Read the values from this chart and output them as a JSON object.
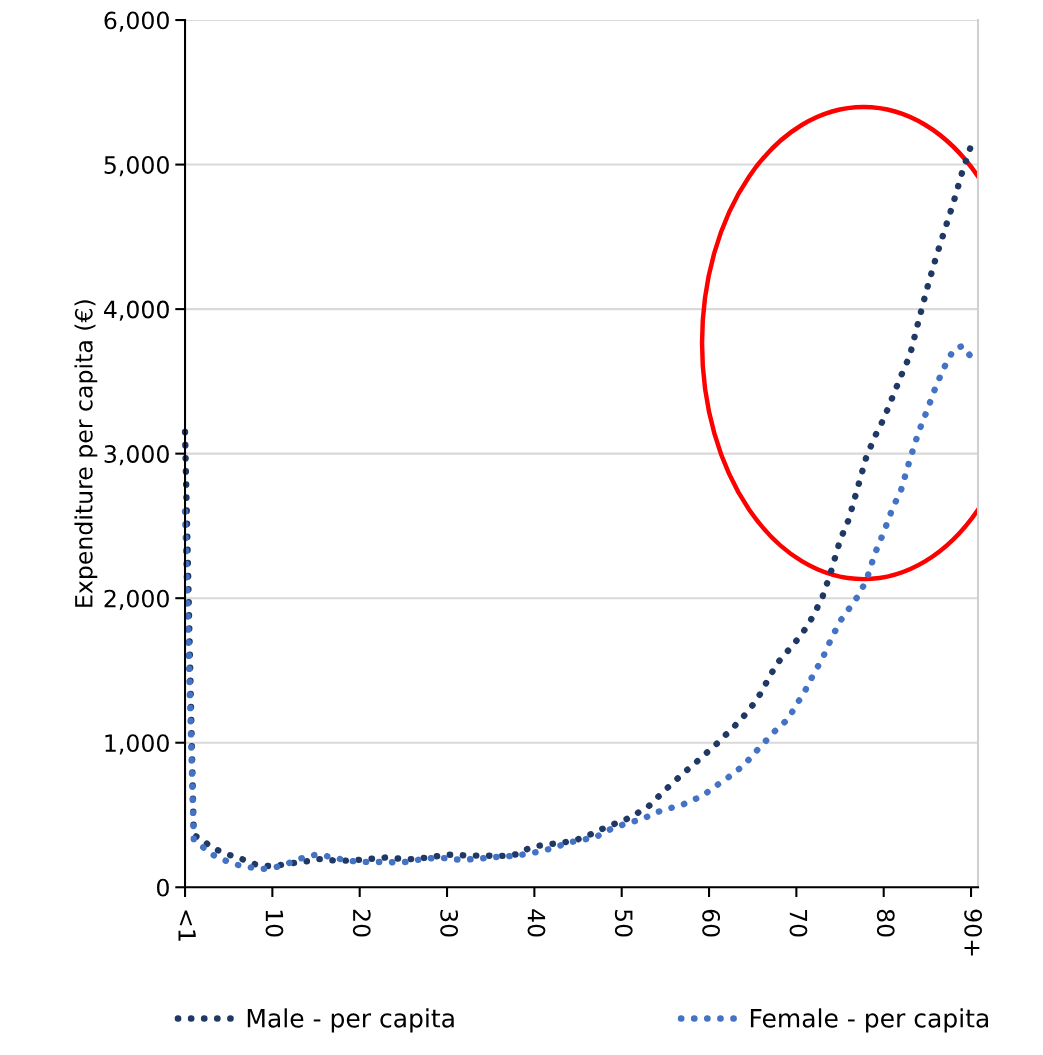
{
  "chart_data": {
    "type": "line",
    "ylabel": "Expenditure per capita (€)",
    "categories": [
      "<1",
      null,
      null,
      null,
      null,
      null,
      null,
      null,
      null,
      null,
      "10",
      null,
      null,
      null,
      null,
      null,
      null,
      null,
      null,
      null,
      "20",
      null,
      null,
      null,
      null,
      null,
      null,
      null,
      null,
      null,
      "30",
      null,
      null,
      null,
      null,
      null,
      null,
      null,
      null,
      null,
      "40",
      null,
      null,
      null,
      null,
      null,
      null,
      null,
      null,
      null,
      "50",
      null,
      null,
      null,
      null,
      null,
      null,
      null,
      null,
      null,
      "60",
      null,
      null,
      null,
      null,
      null,
      null,
      null,
      null,
      null,
      "70",
      null,
      null,
      null,
      null,
      null,
      null,
      null,
      null,
      null,
      "80",
      null,
      null,
      null,
      null,
      null,
      null,
      null,
      null,
      null,
      "90+"
    ],
    "series": [
      {
        "name": "Male - per capita",
        "color": "#203864",
        "values": [
          3150,
          360,
          330,
          275,
          250,
          225,
          205,
          185,
          160,
          150,
          145,
          155,
          165,
          172,
          180,
          195,
          195,
          185,
          183,
          186,
          190,
          195,
          200,
          206,
          200,
          197,
          194,
          200,
          208,
          216,
          225,
          225,
          220,
          219,
          219,
          218,
          216,
          220,
          228,
          260,
          282,
          292,
          300,
          305,
          318,
          332,
          355,
          380,
          410,
          435,
          455,
          485,
          520,
          555,
          615,
          675,
          730,
          785,
          838,
          890,
          945,
          1000,
          1060,
          1120,
          1185,
          1260,
          1350,
          1467,
          1563,
          1633,
          1705,
          1785,
          1885,
          2010,
          2190,
          2400,
          2545,
          2760,
          2975,
          3120,
          3240,
          3390,
          3540,
          3680,
          3920,
          4150,
          4360,
          4550,
          4740,
          4950,
          5130
        ]
      },
      {
        "name": "Female - per capita",
        "color": "#4472c4",
        "values": [
          2600,
          330,
          280,
          230,
          200,
          175,
          155,
          143,
          133,
          127,
          135,
          147,
          170,
          193,
          215,
          225,
          218,
          205,
          192,
          182,
          176,
          175,
          175,
          174,
          173,
          173,
          182,
          193,
          200,
          205,
          200,
          192,
          192,
          194,
          200,
          207,
          211,
          215,
          219,
          230,
          240,
          255,
          268,
          290,
          310,
          322,
          334,
          345,
          380,
          410,
          430,
          450,
          465,
          490,
          518,
          540,
          554,
          572,
          600,
          625,
          665,
          710,
          750,
          800,
          843,
          915,
          980,
          1045,
          1110,
          1160,
          1262,
          1360,
          1478,
          1585,
          1720,
          1840,
          1925,
          2010,
          2120,
          2310,
          2455,
          2620,
          2750,
          2960,
          3150,
          3304,
          3470,
          3605,
          3720,
          3745,
          3670
        ]
      }
    ],
    "ylim": [
      0,
      6000
    ],
    "yticks": [
      0,
      {
        "value": 1000,
        "label": "1,000"
      },
      {
        "value": 2000,
        "label": "2,000"
      },
      {
        "value": 3000,
        "label": "3,000"
      },
      {
        "value": 4000,
        "label": "4,000"
      },
      {
        "value": 5000,
        "label": "5,000"
      },
      {
        "value": 6000,
        "label": "6,000"
      }
    ],
    "grid": "y",
    "legend": "bottom",
    "line_style": "dotted",
    "marker": "none"
  }
}
